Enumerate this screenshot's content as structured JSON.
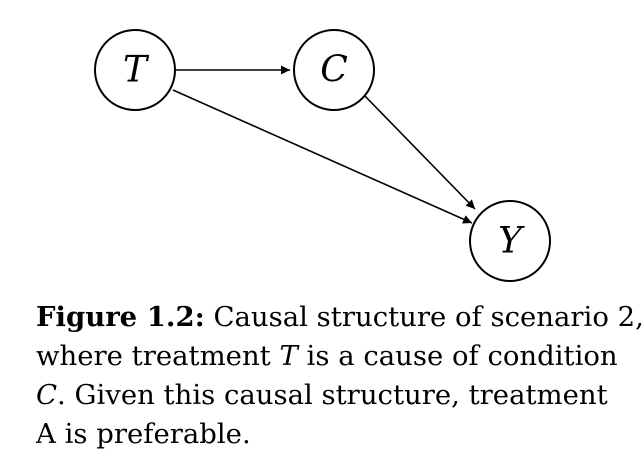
{
  "diagram": {
    "nodes": [
      {
        "id": "T",
        "label": "T"
      },
      {
        "id": "C",
        "label": "C"
      },
      {
        "id": "Y",
        "label": "Y"
      }
    ],
    "edges": [
      {
        "from": "T",
        "to": "C"
      },
      {
        "from": "T",
        "to": "Y"
      },
      {
        "from": "C",
        "to": "Y"
      }
    ]
  },
  "caption": {
    "figure_label": "Figure 1.2:",
    "line1_text": " Causal structure of scenario 2,",
    "line2_pre": "where treatment ",
    "line2_math": "T",
    "line2_post": " is a cause of condition",
    "line3_math": "C",
    "line3_post": ". Given this causal structure, treatment",
    "line4_text": "A is preferable."
  }
}
